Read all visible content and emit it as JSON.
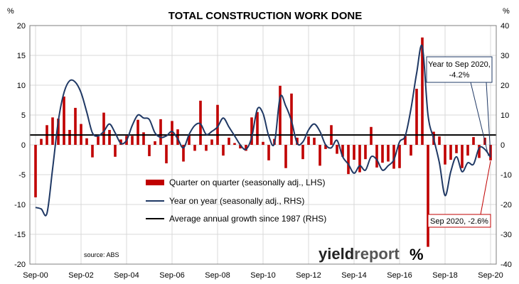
{
  "chart_data": {
    "type": "bar",
    "title": "TOTAL CONSTRUCTION WORK DONE",
    "left_unit": "%",
    "right_unit": "%",
    "y_left": {
      "min": -20,
      "max": 20,
      "ticks": [
        20,
        15,
        10,
        5,
        0,
        -5,
        -10,
        -15,
        -20
      ]
    },
    "y_right": {
      "min": -40,
      "max": 40,
      "ticks": [
        40,
        30,
        20,
        10,
        0,
        -10,
        -20,
        -30,
        -40
      ]
    },
    "x_ticks": [
      {
        "label": "Sep-00",
        "x": 2000.67
      },
      {
        "label": "Sep-02",
        "x": 2002.67
      },
      {
        "label": "Sep-04",
        "x": 2004.67
      },
      {
        "label": "Sep-06",
        "x": 2006.67
      },
      {
        "label": "Sep-08",
        "x": 2008.67
      },
      {
        "label": "Sep-10",
        "x": 2010.67
      },
      {
        "label": "Sep-12",
        "x": 2012.67
      },
      {
        "label": "Sep-14",
        "x": 2014.67
      },
      {
        "label": "Sep-16",
        "x": 2016.67
      },
      {
        "label": "Sep-18",
        "x": 2018.67
      },
      {
        "label": "Sep-20",
        "x": 2020.67
      }
    ],
    "x_range": [
      2000.42,
      2020.92
    ],
    "series": [
      {
        "name": "Quarter on quarter (seasonally adj., LHS)",
        "kind": "bar",
        "axis": "left",
        "color": "#c00000",
        "x": [
          2000.67,
          2000.92,
          2001.17,
          2001.42,
          2001.67,
          2001.92,
          2002.17,
          2002.42,
          2002.67,
          2002.92,
          2003.17,
          2003.42,
          2003.67,
          2003.92,
          2004.17,
          2004.42,
          2004.67,
          2004.92,
          2005.17,
          2005.42,
          2005.67,
          2005.92,
          2006.17,
          2006.42,
          2006.67,
          2006.92,
          2007.17,
          2007.42,
          2007.67,
          2007.92,
          2008.17,
          2008.42,
          2008.67,
          2008.92,
          2009.17,
          2009.42,
          2009.67,
          2009.92,
          2010.17,
          2010.42,
          2010.67,
          2010.92,
          2011.17,
          2011.42,
          2011.67,
          2011.92,
          2012.17,
          2012.42,
          2012.67,
          2012.92,
          2013.17,
          2013.42,
          2013.67,
          2013.92,
          2014.17,
          2014.42,
          2014.67,
          2014.92,
          2015.17,
          2015.42,
          2015.67,
          2015.92,
          2016.17,
          2016.42,
          2016.67,
          2016.92,
          2017.17,
          2017.42,
          2017.67,
          2017.92,
          2018.17,
          2018.42,
          2018.67,
          2018.92,
          2019.17,
          2019.42,
          2019.67,
          2019.92,
          2020.17,
          2020.42,
          2020.67
        ],
        "values": [
          -8.8,
          1.0,
          3.3,
          4.6,
          4.4,
          8.1,
          2.5,
          6.2,
          3.5,
          1.1,
          -2.1,
          1.4,
          5.4,
          2.5,
          -2.0,
          0.9,
          1.5,
          1.5,
          4.2,
          2.1,
          -1.9,
          0.6,
          4.3,
          -3.1,
          4.0,
          2.6,
          -2.8,
          1.6,
          -1.0,
          7.4,
          -1.0,
          0.9,
          6.7,
          -1.8,
          1.2,
          0.3,
          -0.6,
          -1.0,
          4.6,
          5.5,
          0.5,
          -2.6,
          1.0,
          9.9,
          -3.9,
          8.6,
          1.2,
          -2.4,
          1.4,
          1.2,
          -3.5,
          -0.7,
          3.3,
          -1.5,
          -2.0,
          -4.9,
          -2.5,
          -4.6,
          -2.4,
          3.0,
          -3.8,
          -3.0,
          -2.8,
          -4.0,
          -3.9,
          1.5,
          -1.8,
          9.4,
          18.0,
          -17.1,
          2.2,
          1.4,
          -3.3,
          -2.5,
          -1.4,
          -3.9,
          -1.8,
          1.3,
          -2.2,
          1.2,
          -2.6
        ]
      },
      {
        "name": "Year on year (seasonally adj., RHS)",
        "kind": "line",
        "axis": "right",
        "color": "#1f3864",
        "x": [
          2000.67,
          2000.92,
          2001.17,
          2001.42,
          2001.67,
          2001.92,
          2002.17,
          2002.42,
          2002.67,
          2002.92,
          2003.17,
          2003.42,
          2003.67,
          2003.92,
          2004.17,
          2004.42,
          2004.67,
          2004.92,
          2005.17,
          2005.42,
          2005.67,
          2005.92,
          2006.17,
          2006.42,
          2006.67,
          2006.92,
          2007.17,
          2007.42,
          2007.67,
          2007.92,
          2008.17,
          2008.42,
          2008.67,
          2008.92,
          2009.17,
          2009.42,
          2009.67,
          2009.92,
          2010.17,
          2010.42,
          2010.67,
          2010.92,
          2011.17,
          2011.42,
          2011.67,
          2011.92,
          2012.17,
          2012.42,
          2012.67,
          2012.92,
          2013.17,
          2013.42,
          2013.67,
          2013.92,
          2014.17,
          2014.42,
          2014.67,
          2014.92,
          2015.17,
          2015.42,
          2015.67,
          2015.92,
          2016.17,
          2016.42,
          2016.67,
          2016.92,
          2017.17,
          2017.42,
          2017.67,
          2017.92,
          2018.17,
          2018.42,
          2018.67,
          2018.92,
          2019.17,
          2019.42,
          2019.67,
          2019.92,
          2020.17,
          2020.42,
          2020.67
        ],
        "values": [
          -21.0,
          -21.5,
          -23.0,
          -8.0,
          8.0,
          17.5,
          21.5,
          21.0,
          17.5,
          11.0,
          4.0,
          3.0,
          4.5,
          7.0,
          4.0,
          0.5,
          1.5,
          6.5,
          10.0,
          9.0,
          8.5,
          4.0,
          2.5,
          3.0,
          4.5,
          2.0,
          -1.0,
          3.5,
          6.5,
          7.0,
          3.5,
          4.5,
          6.0,
          9.0,
          6.0,
          3.0,
          0.0,
          -1.5,
          2.5,
          12.0,
          10.5,
          3.0,
          0.5,
          16.0,
          13.0,
          8.0,
          0.5,
          1.0,
          5.0,
          7.0,
          4.5,
          0.0,
          -1.0,
          1.5,
          -4.0,
          -6.5,
          -9.5,
          -7.0,
          -8.5,
          -4.0,
          -5.0,
          -8.5,
          -7.0,
          -5.0,
          1.0,
          3.0,
          12.0,
          24.0,
          33.0,
          10.0,
          2.0,
          -6.0,
          -17.0,
          -9.0,
          -4.0,
          -9.0,
          -6.0,
          -6.5,
          -1.0,
          -1.5,
          -4.2
        ]
      },
      {
        "name": "Average annual growth since 1987 (RHS)",
        "kind": "hline",
        "axis": "right",
        "color": "#000000",
        "value": 3.3
      }
    ],
    "annotations": [
      {
        "text_lines": [
          "Year to Sep 2020,",
          "-4.2%"
        ],
        "color": "#1f3864",
        "target_x": 2020.67,
        "target_y": -4.2,
        "axis": "right"
      },
      {
        "text_lines": [
          "Sep 2020, -2.6%"
        ],
        "color": "#c00000",
        "target_x": 2020.67,
        "target_y": -2.6,
        "axis": "left"
      }
    ],
    "source": "source: ABS",
    "logo": {
      "part1": "yield",
      "part2": "report",
      "symbol": "%"
    }
  }
}
